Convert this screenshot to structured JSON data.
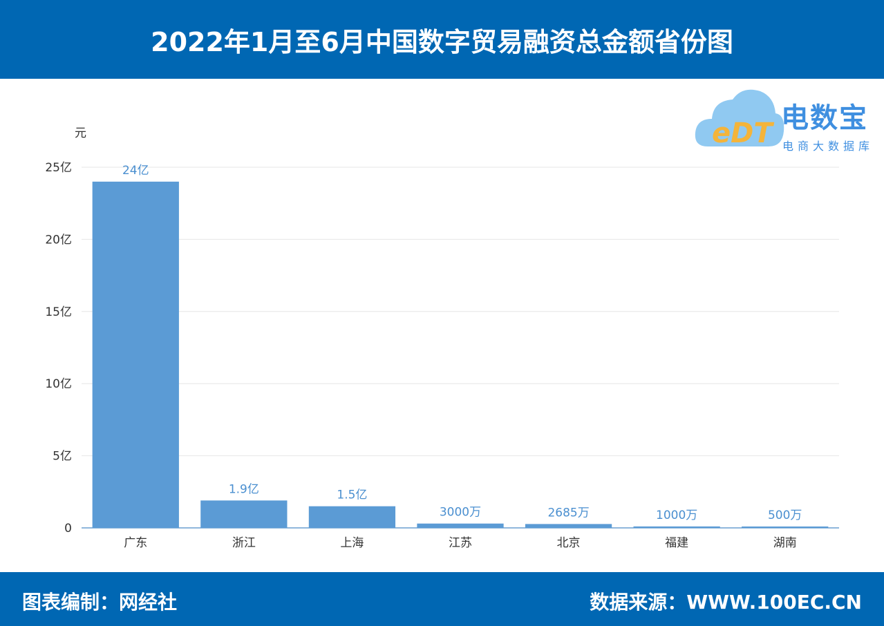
{
  "header": {
    "title": "2022年1月至6月中国数字贸易融资总金额省份图"
  },
  "logo": {
    "mark": "eDT",
    "name": "电数宝",
    "tagline": "电商大数据库",
    "color": "#3f8fe0"
  },
  "footer": {
    "left": "图表编制：网经社",
    "right": "数据来源：WWW.100EC.CN"
  },
  "colors": {
    "brand": "#0067b3",
    "bar": "#5b9bd5",
    "bar_label": "#4a8fd0"
  },
  "chart_data": {
    "type": "bar",
    "ylabel": "元",
    "ylim": [
      0,
      25
    ],
    "yticks": [
      {
        "value": 0,
        "label": "0"
      },
      {
        "value": 5,
        "label": "5亿"
      },
      {
        "value": 10,
        "label": "10亿"
      },
      {
        "value": 15,
        "label": "15亿"
      },
      {
        "value": 20,
        "label": "20亿"
      },
      {
        "value": 25,
        "label": "25亿"
      }
    ],
    "categories": [
      "广东",
      "浙江",
      "上海",
      "江苏",
      "北京",
      "福建",
      "湖南"
    ],
    "values": [
      24,
      1.9,
      1.5,
      0.3,
      0.2685,
      0.1,
      0.05
    ],
    "value_labels": [
      "24亿",
      "1.9亿",
      "1.5亿",
      "3000万",
      "2685万",
      "1000万",
      "500万"
    ],
    "grid": true,
    "legend": "none"
  }
}
